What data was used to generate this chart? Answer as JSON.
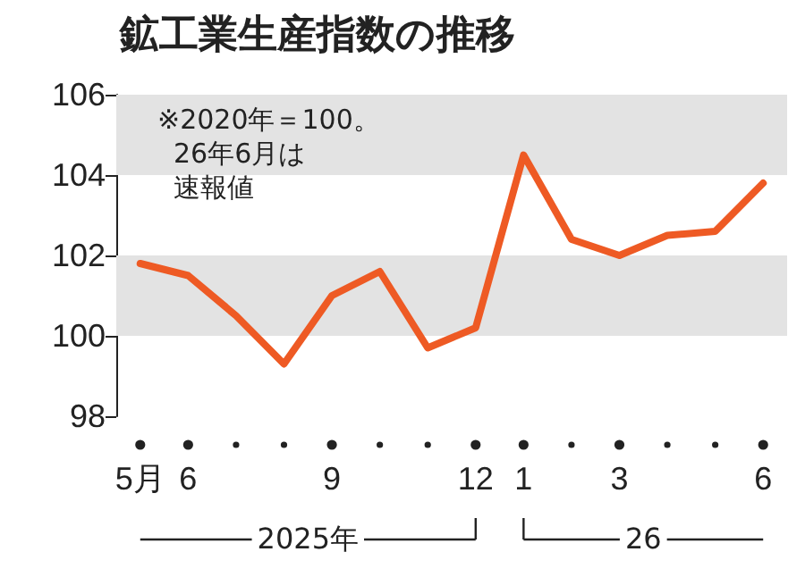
{
  "chart_data": {
    "type": "line",
    "title": "鉱工業生産指数の推移",
    "categories": [
      "5月",
      "6",
      null,
      null,
      "9",
      null,
      null,
      "12",
      "1",
      null,
      "3",
      null,
      null,
      "6"
    ],
    "series": [
      {
        "color": "#ee5a24",
        "values": [
          101.8,
          101.5,
          100.5,
          99.3,
          101.0,
          101.6,
          99.7,
          100.2,
          104.5,
          102.4,
          102.0,
          102.5,
          102.6,
          103.8
        ]
      }
    ],
    "ylim": [
      98,
      106
    ],
    "yticks": [
      98,
      100,
      102,
      104,
      106
    ],
    "grid": false,
    "marker": "none",
    "line_style": "solid",
    "bands": [
      {
        "axis": "y",
        "from": 100,
        "to": 102,
        "color": "#e3e3e3"
      },
      {
        "axis": "y",
        "from": 104,
        "to": 106,
        "color": "#e3e3e3"
      }
    ],
    "annotations": [
      "※2020年＝100。",
      "26年6月は",
      "速報値",
      "2025年",
      "26"
    ]
  }
}
